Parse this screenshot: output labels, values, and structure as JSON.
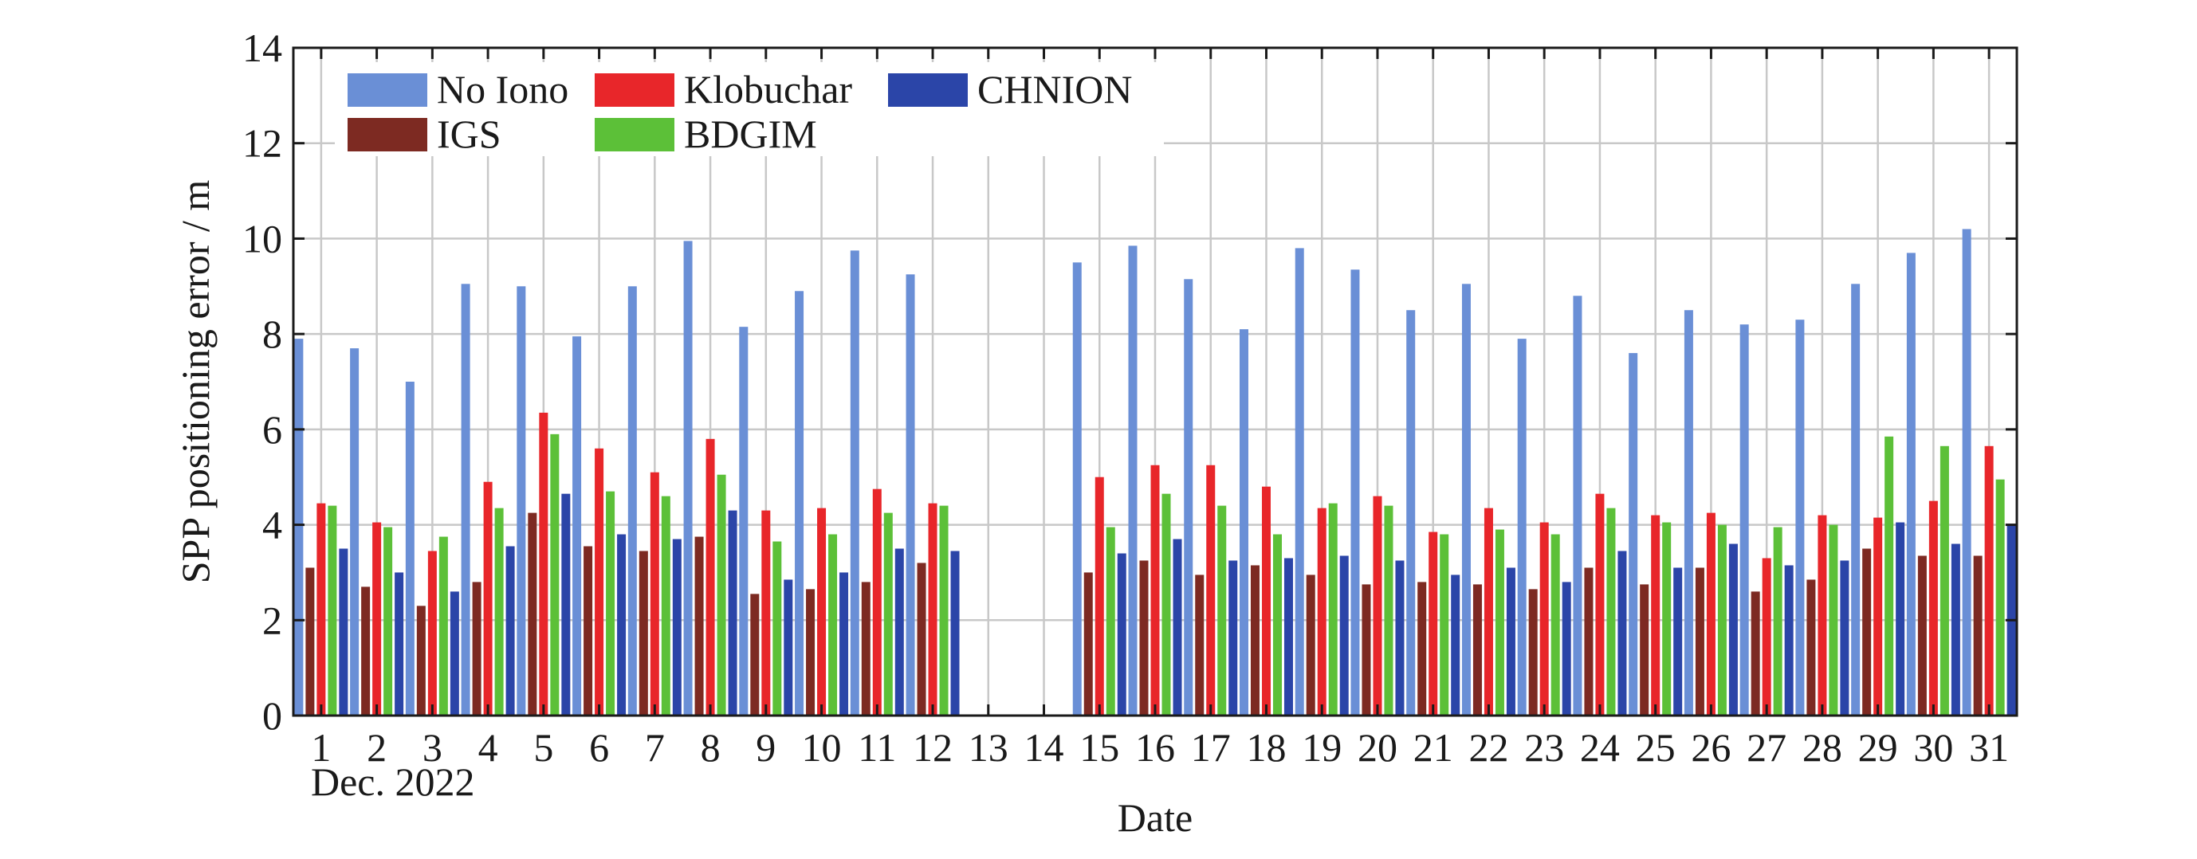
{
  "chart_data": {
    "type": "bar",
    "xlabel": "Date",
    "ylabel": "SPP positioning error / m",
    "x_sublabel": "Dec. 2022",
    "ylim": [
      0,
      14
    ],
    "yticks": [
      0,
      2,
      4,
      6,
      8,
      10,
      12,
      14
    ],
    "grid": true,
    "legend_position": "top-left",
    "categories": [
      "1",
      "2",
      "3",
      "4",
      "5",
      "6",
      "7",
      "8",
      "9",
      "10",
      "11",
      "12",
      "13",
      "14",
      "15",
      "16",
      "17",
      "18",
      "19",
      "20",
      "21",
      "22",
      "23",
      "24",
      "25",
      "26",
      "27",
      "28",
      "29",
      "30",
      "31"
    ],
    "series": [
      {
        "name": "No Iono",
        "color": "#6a8fd6",
        "values": [
          7.9,
          7.7,
          7.0,
          9.05,
          9.0,
          7.95,
          9.0,
          9.95,
          8.15,
          8.9,
          9.75,
          9.25,
          null,
          null,
          9.5,
          9.85,
          9.15,
          8.1,
          9.8,
          9.35,
          8.5,
          9.05,
          7.9,
          8.8,
          7.6,
          8.5,
          8.2,
          8.3,
          9.05,
          9.7,
          10.2
        ]
      },
      {
        "name": "IGS",
        "color": "#7d2a22",
        "values": [
          3.1,
          2.7,
          2.3,
          2.8,
          4.25,
          3.55,
          3.45,
          3.75,
          2.55,
          2.65,
          2.8,
          3.2,
          null,
          null,
          3.0,
          3.25,
          2.95,
          3.15,
          2.95,
          2.75,
          2.8,
          2.75,
          2.65,
          3.1,
          2.75,
          3.1,
          2.6,
          2.85,
          3.5,
          3.35,
          3.35
        ]
      },
      {
        "name": "Klobuchar",
        "color": "#e8262a",
        "values": [
          4.45,
          4.05,
          3.45,
          4.9,
          6.35,
          5.6,
          5.1,
          5.8,
          4.3,
          4.35,
          4.75,
          4.45,
          null,
          null,
          5.0,
          5.25,
          5.25,
          4.8,
          4.35,
          4.6,
          3.85,
          4.35,
          4.05,
          4.65,
          4.2,
          4.25,
          3.3,
          4.2,
          4.15,
          4.5,
          5.65
        ]
      },
      {
        "name": "BDGIM",
        "color": "#5cc038",
        "values": [
          4.4,
          3.95,
          3.75,
          4.35,
          5.9,
          4.7,
          4.6,
          5.05,
          3.65,
          3.8,
          4.25,
          4.4,
          null,
          null,
          3.95,
          4.65,
          4.4,
          3.8,
          4.45,
          4.4,
          3.8,
          3.9,
          3.8,
          4.35,
          4.05,
          4.0,
          3.95,
          4.0,
          5.85,
          5.65,
          4.95
        ]
      },
      {
        "name": "CHNION",
        "color": "#2b45a8",
        "values": [
          3.5,
          3.0,
          2.6,
          3.55,
          4.65,
          3.8,
          3.7,
          4.3,
          2.85,
          3.0,
          3.5,
          3.45,
          null,
          null,
          3.4,
          3.7,
          3.25,
          3.3,
          3.35,
          3.25,
          2.95,
          3.1,
          2.8,
          3.45,
          3.1,
          3.6,
          3.15,
          3.25,
          4.05,
          3.6,
          4.0
        ]
      }
    ]
  }
}
